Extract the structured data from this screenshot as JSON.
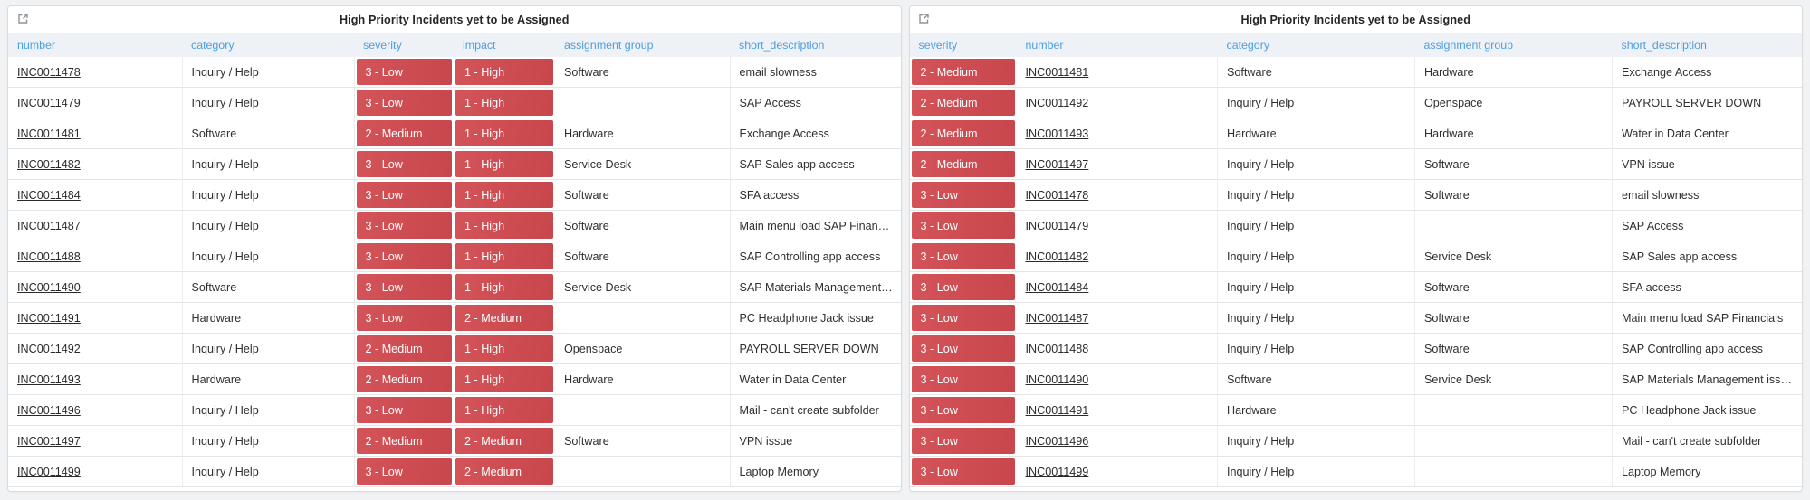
{
  "colors": {
    "badge_red": "#d0494f",
    "header_text_blue": "#4b9fe1",
    "header_row_bg": "#eef1f6"
  },
  "icons": {
    "popout": "open-in-new-window"
  },
  "widgets": [
    {
      "title": "High Priority Incidents yet to be Assigned",
      "columns": [
        {
          "key": "number",
          "label": "number",
          "kind": "link"
        },
        {
          "key": "category",
          "label": "category",
          "kind": "text"
        },
        {
          "key": "severity",
          "label": "severity",
          "kind": "badge"
        },
        {
          "key": "impact",
          "label": "impact",
          "kind": "badge"
        },
        {
          "key": "assignment_group",
          "label": "assignment group",
          "kind": "text"
        },
        {
          "key": "short_description",
          "label": "short_description",
          "kind": "text"
        }
      ],
      "rows": [
        {
          "number": "INC0011478",
          "category": "Inquiry / Help",
          "severity": "3 - Low",
          "impact": "1 - High",
          "assignment_group": "Software",
          "short_description": "email slowness"
        },
        {
          "number": "INC0011479",
          "category": "Inquiry / Help",
          "severity": "3 - Low",
          "impact": "1 - High",
          "assignment_group": "",
          "short_description": "SAP Access"
        },
        {
          "number": "INC0011481",
          "category": "Software",
          "severity": "2 - Medium",
          "impact": "1 - High",
          "assignment_group": "Hardware",
          "short_description": "Exchange Access"
        },
        {
          "number": "INC0011482",
          "category": "Inquiry / Help",
          "severity": "3 - Low",
          "impact": "1 - High",
          "assignment_group": "Service Desk",
          "short_description": "SAP Sales app access"
        },
        {
          "number": "INC0011484",
          "category": "Inquiry / Help",
          "severity": "3 - Low",
          "impact": "1 - High",
          "assignment_group": "Software",
          "short_description": "SFA access"
        },
        {
          "number": "INC0011487",
          "category": "Inquiry / Help",
          "severity": "3 - Low",
          "impact": "1 - High",
          "assignment_group": "Software",
          "short_description": "Main menu load SAP Financ…"
        },
        {
          "number": "INC0011488",
          "category": "Inquiry / Help",
          "severity": "3 - Low",
          "impact": "1 - High",
          "assignment_group": "Software",
          "short_description": "SAP Controlling app access"
        },
        {
          "number": "INC0011490",
          "category": "Software",
          "severity": "3 - Low",
          "impact": "1 - High",
          "assignment_group": "Service Desk",
          "short_description": "SAP Materials Management…"
        },
        {
          "number": "INC0011491",
          "category": "Hardware",
          "severity": "3 - Low",
          "impact": "2 - Medium",
          "assignment_group": "",
          "short_description": "PC Headphone Jack issue"
        },
        {
          "number": "INC0011492",
          "category": "Inquiry / Help",
          "severity": "2 - Medium",
          "impact": "1 - High",
          "assignment_group": "Openspace",
          "short_description": "PAYROLL SERVER DOWN"
        },
        {
          "number": "INC0011493",
          "category": "Hardware",
          "severity": "2 - Medium",
          "impact": "1 - High",
          "assignment_group": "Hardware",
          "short_description": "Water in Data Center"
        },
        {
          "number": "INC0011496",
          "category": "Inquiry / Help",
          "severity": "3 - Low",
          "impact": "1 - High",
          "assignment_group": "",
          "short_description": "Mail - can't create subfolder"
        },
        {
          "number": "INC0011497",
          "category": "Inquiry / Help",
          "severity": "2 - Medium",
          "impact": "2 - Medium",
          "assignment_group": "Software",
          "short_description": "VPN issue"
        },
        {
          "number": "INC0011499",
          "category": "Inquiry / Help",
          "severity": "3 - Low",
          "impact": "2 - Medium",
          "assignment_group": "",
          "short_description": "Laptop Memory"
        }
      ]
    },
    {
      "title": "High Priority Incidents yet to be Assigned",
      "columns": [
        {
          "key": "severity",
          "label": "severity",
          "kind": "badge"
        },
        {
          "key": "number",
          "label": "number",
          "kind": "link"
        },
        {
          "key": "category",
          "label": "category",
          "kind": "text"
        },
        {
          "key": "assignment_group",
          "label": "assignment group",
          "kind": "text"
        },
        {
          "key": "short_description",
          "label": "short_description",
          "kind": "text"
        }
      ],
      "rows": [
        {
          "severity": "2 - Medium",
          "number": "INC0011481",
          "category": "Software",
          "assignment_group": "Hardware",
          "short_description": "Exchange Access"
        },
        {
          "severity": "2 - Medium",
          "number": "INC0011492",
          "category": "Inquiry / Help",
          "assignment_group": "Openspace",
          "short_description": "PAYROLL SERVER DOWN"
        },
        {
          "severity": "2 - Medium",
          "number": "INC0011493",
          "category": "Hardware",
          "assignment_group": "Hardware",
          "short_description": "Water in Data Center"
        },
        {
          "severity": "2 - Medium",
          "number": "INC0011497",
          "category": "Inquiry / Help",
          "assignment_group": "Software",
          "short_description": "VPN issue"
        },
        {
          "severity": "3 - Low",
          "number": "INC0011478",
          "category": "Inquiry / Help",
          "assignment_group": "Software",
          "short_description": "email slowness"
        },
        {
          "severity": "3 - Low",
          "number": "INC0011479",
          "category": "Inquiry / Help",
          "assignment_group": "",
          "short_description": "SAP Access"
        },
        {
          "severity": "3 - Low",
          "number": "INC0011482",
          "category": "Inquiry / Help",
          "assignment_group": "Service Desk",
          "short_description": "SAP Sales app access"
        },
        {
          "severity": "3 - Low",
          "number": "INC0011484",
          "category": "Inquiry / Help",
          "assignment_group": "Software",
          "short_description": "SFA access"
        },
        {
          "severity": "3 - Low",
          "number": "INC0011487",
          "category": "Inquiry / Help",
          "assignment_group": "Software",
          "short_description": "Main menu load SAP Financials"
        },
        {
          "severity": "3 - Low",
          "number": "INC0011488",
          "category": "Inquiry / Help",
          "assignment_group": "Software",
          "short_description": "SAP Controlling app access"
        },
        {
          "severity": "3 - Low",
          "number": "INC0011490",
          "category": "Software",
          "assignment_group": "Service Desk",
          "short_description": "SAP Materials Management issu…"
        },
        {
          "severity": "3 - Low",
          "number": "INC0011491",
          "category": "Hardware",
          "assignment_group": "",
          "short_description": "PC Headphone Jack issue"
        },
        {
          "severity": "3 - Low",
          "number": "INC0011496",
          "category": "Inquiry / Help",
          "assignment_group": "",
          "short_description": "Mail - can't create subfolder"
        },
        {
          "severity": "3 - Low",
          "number": "INC0011499",
          "category": "Inquiry / Help",
          "assignment_group": "",
          "short_description": "Laptop Memory"
        }
      ]
    }
  ]
}
